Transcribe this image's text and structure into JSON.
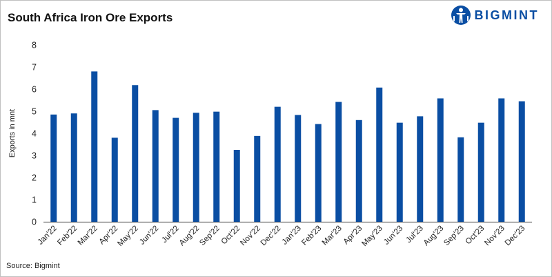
{
  "title": "South Africa Iron Ore Exports",
  "source": "Source: Bigmint",
  "logo": {
    "text": "BIGMINT",
    "icon": "person-figure-logo-icon",
    "color": "#0a4ea3"
  },
  "colors": {
    "bar": "#0a4ea3",
    "axis": "#333333",
    "grid": "#e6e6e6"
  },
  "chart_data": {
    "type": "bar",
    "title": "South Africa Iron Ore Exports",
    "xlabel": "",
    "ylabel": "Exports in mnt",
    "ylim": [
      0,
      8
    ],
    "yticks": [
      "0",
      "1",
      "2",
      "3",
      "4",
      "5",
      "6",
      "7",
      "8"
    ],
    "grid": false,
    "categories": [
      "Jan'22",
      "Feb'22",
      "Mar'22",
      "Apr'22",
      "May'22",
      "Jun'22",
      "Jul'22",
      "Aug'22",
      "Sep'22",
      "Oct'22",
      "Nov'22",
      "Dec'22",
      "Jan'23",
      "Feb'23",
      "Mar'23",
      "Apr'23",
      "May'23",
      "Jun'23",
      "Jul'23",
      "Aug'23",
      "Sep'23",
      "Oct'23",
      "Nov'23",
      "Dec'23"
    ],
    "values": [
      4.85,
      4.9,
      6.8,
      3.8,
      6.18,
      5.05,
      4.7,
      4.93,
      4.98,
      3.25,
      3.88,
      5.2,
      4.83,
      4.42,
      5.42,
      4.6,
      6.07,
      4.48,
      4.77,
      5.58,
      3.82,
      4.48,
      5.58,
      5.45
    ]
  }
}
